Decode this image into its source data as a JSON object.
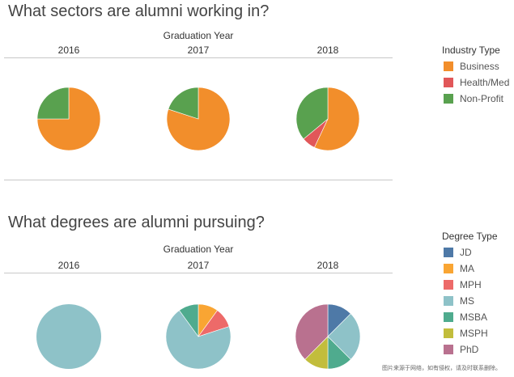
{
  "chart_data": [
    {
      "type": "pie",
      "title": "What sectors are alumni working in?",
      "column_group_label": "Graduation Year",
      "panels": [
        {
          "year": "2016",
          "slices": [
            {
              "label": "Business",
              "value": 75
            },
            {
              "label": "Non-Profit",
              "value": 25
            }
          ]
        },
        {
          "year": "2017",
          "slices": [
            {
              "label": "Business",
              "value": 80
            },
            {
              "label": "Non-Profit",
              "value": 20
            }
          ]
        },
        {
          "year": "2018",
          "slices": [
            {
              "label": "Business",
              "value": 57
            },
            {
              "label": "Health/Med",
              "value": 7
            },
            {
              "label": "Non-Profit",
              "value": 36
            }
          ]
        }
      ],
      "legend": {
        "title": "Industry Type",
        "position": "right",
        "items": [
          {
            "label": "Business",
            "color": "#f28e2b"
          },
          {
            "label": "Health/Med",
            "color": "#e15759"
          },
          {
            "label": "Non-Profit",
            "color": "#59a14f"
          }
        ]
      }
    },
    {
      "type": "pie",
      "title": "What degrees are alumni pursuing?",
      "column_group_label": "Graduation Year",
      "panels": [
        {
          "year": "2016",
          "slices": [
            {
              "label": "MS",
              "value": 100
            }
          ]
        },
        {
          "year": "2017",
          "slices": [
            {
              "label": "MA",
              "value": 10
            },
            {
              "label": "MPH",
              "value": 10
            },
            {
              "label": "MS",
              "value": 70
            },
            {
              "label": "MSBA",
              "value": 10
            }
          ]
        },
        {
          "year": "2018",
          "slices": [
            {
              "label": "JD",
              "value": 12.5
            },
            {
              "label": "MS",
              "value": 25
            },
            {
              "label": "MSBA",
              "value": 12.5
            },
            {
              "label": "MSPH",
              "value": 12.5
            },
            {
              "label": "PhD",
              "value": 37.5
            }
          ]
        }
      ],
      "legend": {
        "title": "Degree Type",
        "position": "right",
        "items": [
          {
            "label": "JD",
            "color": "#4e79a7"
          },
          {
            "label": "MA",
            "color": "#f9a533"
          },
          {
            "label": "MPH",
            "color": "#ed6a69"
          },
          {
            "label": "MS",
            "color": "#8ec2c8"
          },
          {
            "label": "MSBA",
            "color": "#4fab8e"
          },
          {
            "label": "MSPH",
            "color": "#c2bd3c"
          },
          {
            "label": "PhD",
            "color": "#b9718f"
          }
        ]
      }
    }
  ],
  "watermark": "图片来源于网络，如有侵权，请及时联系删除。"
}
